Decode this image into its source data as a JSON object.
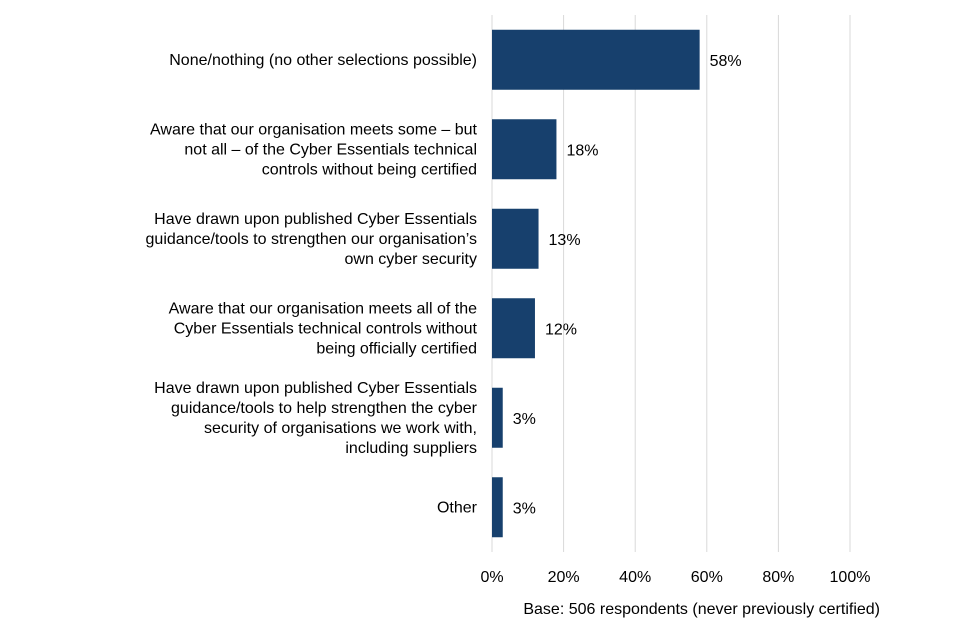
{
  "chart_data": {
    "type": "bar",
    "orientation": "horizontal",
    "title": "",
    "xlabel": "",
    "ylabel": "",
    "categories": [
      [
        "None/nothing (no other selections possible)"
      ],
      [
        "Aware that our organisation meets some – but",
        "not all – of the Cyber Essentials technical",
        "controls without being certified"
      ],
      [
        "Have drawn upon published Cyber Essentials",
        "guidance/tools to strengthen our organisation’s",
        "own cyber security"
      ],
      [
        "Aware that our organisation meets all of the",
        "Cyber Essentials technical controls without",
        "being officially certified"
      ],
      [
        "Have drawn upon published Cyber Essentials",
        "guidance/tools to help strengthen the cyber",
        "security of organisations we work with,",
        "including suppliers"
      ],
      [
        "Other"
      ]
    ],
    "values": [
      58,
      18,
      13,
      12,
      3,
      3
    ],
    "value_labels": [
      "58%",
      "18%",
      "13%",
      "12%",
      "3%",
      "3%"
    ],
    "xlim": [
      0,
      100
    ],
    "xticks": [
      0,
      20,
      40,
      60,
      80,
      100
    ],
    "xtick_labels": [
      "0%",
      "20%",
      "40%",
      "60%",
      "80%",
      "100%"
    ],
    "grid": "vertical",
    "bar_color": "#17406d",
    "grid_color": "#d9d9d9",
    "note": "Base: 506 respondents (never previously certified)"
  }
}
